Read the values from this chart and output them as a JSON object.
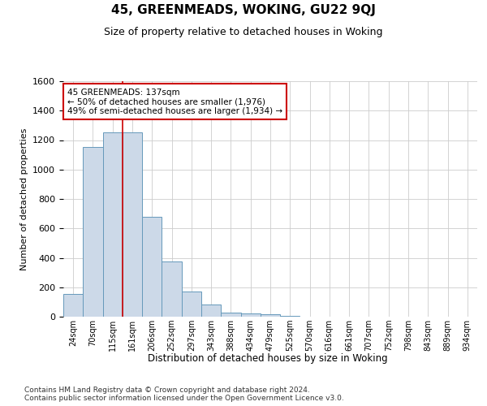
{
  "title": "45, GREENMEADS, WOKING, GU22 9QJ",
  "subtitle": "Size of property relative to detached houses in Woking",
  "xlabel": "Distribution of detached houses by size in Woking",
  "ylabel": "Number of detached properties",
  "bar_color": "#ccd9e8",
  "bar_edge_color": "#6699bb",
  "categories": [
    "24sqm",
    "70sqm",
    "115sqm",
    "161sqm",
    "206sqm",
    "252sqm",
    "297sqm",
    "343sqm",
    "388sqm",
    "434sqm",
    "479sqm",
    "525sqm",
    "570sqm",
    "616sqm",
    "661sqm",
    "707sqm",
    "752sqm",
    "798sqm",
    "843sqm",
    "889sqm",
    "934sqm"
  ],
  "values": [
    155,
    1155,
    1250,
    1250,
    680,
    375,
    170,
    85,
    30,
    20,
    15,
    5,
    0,
    0,
    0,
    0,
    0,
    0,
    0,
    0,
    0
  ],
  "ylim": [
    0,
    1600
  ],
  "yticks": [
    0,
    200,
    400,
    600,
    800,
    1000,
    1200,
    1400,
    1600
  ],
  "property_line_x": 2.5,
  "annotation_title": "45 GREENMEADS: 137sqm",
  "annotation_line1": "← 50% of detached houses are smaller (1,976)",
  "annotation_line2": "49% of semi-detached houses are larger (1,934) →",
  "annotation_box_color": "#ffffff",
  "annotation_box_edge_color": "#cc0000",
  "property_line_color": "#cc0000",
  "footer_line1": "Contains HM Land Registry data © Crown copyright and database right 2024.",
  "footer_line2": "Contains public sector information licensed under the Open Government Licence v3.0.",
  "bg_color": "#ffffff",
  "grid_color": "#cccccc"
}
